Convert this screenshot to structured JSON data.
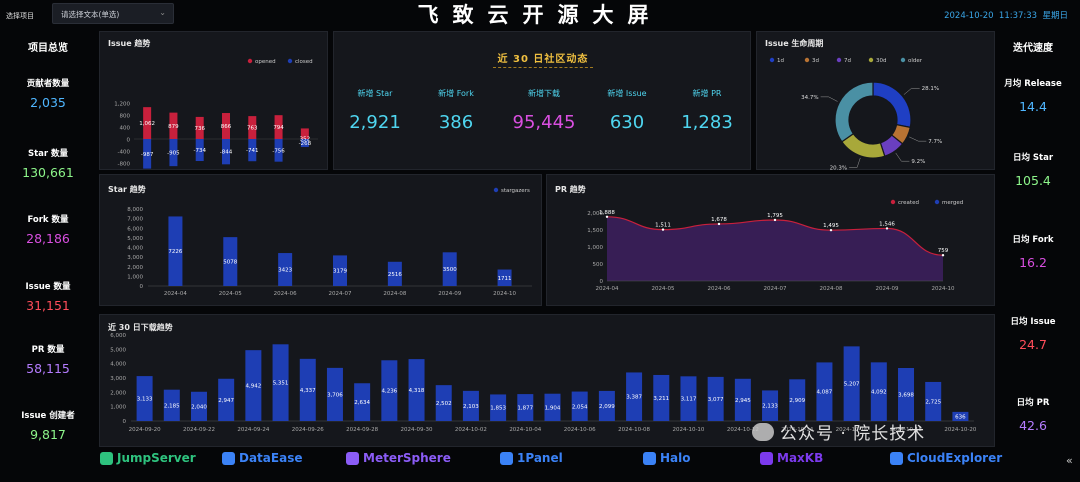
{
  "header": {
    "title": "飞致云开源大屏",
    "select_label": "选择项目",
    "select_placeholder": "请选择文本(单选)",
    "datetime": "2024-10-20  11:37:33  星期日"
  },
  "overview": {
    "title": "项目总览",
    "items": [
      {
        "label": "贡献者数量",
        "value": "2,035",
        "color": "#4fb6ff"
      },
      {
        "label": "Star 数量",
        "value": "130,661",
        "color": "#8df58a"
      },
      {
        "label": "Fork 数量",
        "value": "28,186",
        "color": "#d94fe0"
      },
      {
        "label": "Issue 数量",
        "value": "31,151",
        "color": "#ff4d5a"
      },
      {
        "label": "PR 数量",
        "value": "58,115",
        "color": "#b57cff"
      },
      {
        "label": "Issue 创建者",
        "value": "9,817",
        "color": "#8df58a"
      }
    ]
  },
  "velocity": {
    "title": "迭代速度",
    "items": [
      {
        "label": "月均 Release",
        "value": "14.4",
        "color": "#4fb6ff"
      },
      {
        "label": "日均 Star",
        "value": "105.4",
        "color": "#8df58a"
      },
      {
        "label": "日均 Fork",
        "value": "16.2",
        "color": "#d94fe0"
      },
      {
        "label": "日均 Issue",
        "value": "24.7",
        "color": "#ff4d5a"
      },
      {
        "label": "日均 PR",
        "value": "42.6",
        "color": "#b57cff"
      }
    ]
  },
  "community": {
    "title": "近 30 日社区动态",
    "items": [
      {
        "label": "新增 Star",
        "value": "2,921",
        "color": "#4fd6f0"
      },
      {
        "label": "新增 Fork",
        "value": "386",
        "color": "#4fd6f0"
      },
      {
        "label": "新增下载",
        "value": "95,445",
        "color": "#d94fe0"
      },
      {
        "label": "新增 Issue",
        "value": "630",
        "color": "#4fd6f0"
      },
      {
        "label": "新增 PR",
        "value": "1,283",
        "color": "#4fd6f0"
      }
    ]
  },
  "panels": {
    "issue_trend": "Issue 趋势",
    "issue_cycle": "Issue 生命周期",
    "star_trend": "Star 趋势",
    "pr_trend": "PR 趋势",
    "downloads": "近 30 日下载趋势"
  },
  "logos": [
    {
      "name": "JumpServer",
      "color": "#2ec27e"
    },
    {
      "name": "DataEase",
      "color": "#3b82f6"
    },
    {
      "name": "MeterSphere",
      "color": "#8b5cf6"
    },
    {
      "name": "1Panel",
      "color": "#3b82f6"
    },
    {
      "name": "Halo",
      "color": "#3b82f6"
    },
    {
      "name": "MaxKB",
      "color": "#7c3aed"
    },
    {
      "name": "CloudExplorer",
      "color": "#3b82f6"
    }
  ],
  "watermark": "公众号 · 院长技术",
  "chart_data": [
    {
      "id": "issue_trend",
      "type": "bar",
      "categories": [
        "2024-04",
        "2024-05",
        "2024-06",
        "2024-07",
        "2024-08",
        "2024-09",
        "2024-10"
      ],
      "x_tick_labels": [
        "2024-04",
        "2024-06",
        "2024-08",
        "2024-10"
      ],
      "series": [
        {
          "name": "opened",
          "values": [
            1062,
            879,
            736,
            866,
            763,
            794,
            352
          ],
          "color": "#c8203c"
        },
        {
          "name": "closed",
          "values": [
            -987,
            -905,
            -734,
            -844,
            -741,
            -756,
            -268
          ],
          "color": "#1e3eb4"
        }
      ],
      "yticks": [
        1200,
        800,
        400,
        0,
        -400,
        -800,
        -1200
      ],
      "ylim": [
        -1200,
        1200
      ],
      "legend": "top-right"
    },
    {
      "id": "issue_cycle",
      "type": "pie",
      "legend": [
        "1d",
        "3d",
        "7d",
        "30d",
        "older"
      ],
      "values": [
        28.1,
        7.7,
        9.2,
        20.3,
        34.7
      ],
      "labels": [
        "28.1%",
        "7.7%",
        "9.2%",
        "20.3%",
        "34.7%"
      ],
      "colors": [
        "#1f3fc4",
        "#b87333",
        "#6a3fc0",
        "#a8a83a",
        "#4a90a4"
      ],
      "legend_colors": [
        "#1f3fc4",
        "#b87333",
        "#6a3fc0",
        "#a8a83a",
        "#4a90a4"
      ]
    },
    {
      "id": "star_trend",
      "type": "bar",
      "categories": [
        "2024-04",
        "2024-05",
        "2024-06",
        "2024-07",
        "2024-08",
        "2024-09",
        "2024-10"
      ],
      "series": [
        {
          "name": "stargazers",
          "values": [
            7226,
            5078,
            3423,
            3179,
            2516,
            3500,
            1711
          ],
          "color": "#1e3eb4"
        }
      ],
      "yticks": [
        8000,
        7000,
        6000,
        5000,
        4000,
        3000,
        2000,
        1000,
        0
      ],
      "ylim": [
        0,
        8000
      ],
      "legend": "top-right"
    },
    {
      "id": "pr_trend",
      "type": "area",
      "categories": [
        "2024-04",
        "2024-05",
        "2024-06",
        "2024-07",
        "2024-08",
        "2024-09",
        "2024-10"
      ],
      "series": [
        {
          "name": "created",
          "values": [
            1888,
            1511,
            1678,
            1795,
            1495,
            1546,
            759
          ],
          "color": "#c8203c"
        },
        {
          "name": "merged",
          "values": [
            1888,
            1511,
            1678,
            1795,
            1495,
            1546,
            759
          ],
          "color": "#1e3eb4"
        }
      ],
      "yticks": [
        2000,
        1500,
        1000,
        500,
        0
      ],
      "ylim": [
        0,
        2000
      ],
      "legend": "top-right"
    },
    {
      "id": "downloads",
      "type": "bar",
      "categories": [
        "2024-09-20",
        "2024-09-21",
        "2024-09-22",
        "2024-09-23",
        "2024-09-24",
        "2024-09-25",
        "2024-09-26",
        "2024-09-27",
        "2024-09-28",
        "2024-09-29",
        "2024-09-30",
        "2024-10-01",
        "2024-10-02",
        "2024-10-03",
        "2024-10-04",
        "2024-10-05",
        "2024-10-06",
        "2024-10-07",
        "2024-10-08",
        "2024-10-09",
        "2024-10-10",
        "2024-10-11",
        "2024-10-12",
        "2024-10-13",
        "2024-10-14",
        "2024-10-15",
        "2024-10-16",
        "2024-10-17",
        "2024-10-18",
        "2024-10-19",
        "2024-10-20"
      ],
      "x_tick_labels": [
        "2024-09-20",
        "2024-09-22",
        "2024-09-24",
        "2024-09-26",
        "2024-09-28",
        "2024-09-30",
        "2024-10-02",
        "2024-10-04",
        "2024-10-06",
        "2024-10-08",
        "2024-10-10",
        "2024-10-12",
        "2024-10-14",
        "2024-10-16",
        "2024-10-18",
        "2024-10-20"
      ],
      "series": [
        {
          "name": "downloads",
          "values": [
            3133,
            2185,
            2040,
            2947,
            4942,
            5351,
            4337,
            3706,
            2634,
            4236,
            4318,
            2502,
            2103,
            1853,
            1877,
            1904,
            2054,
            2099,
            3387,
            3211,
            3117,
            3077,
            2945,
            2133,
            2909,
            4087,
            5207,
            4092,
            3698,
            2725,
            636
          ],
          "color": "#1e3eb4"
        }
      ],
      "yticks": [
        6000,
        5000,
        4000,
        3000,
        2000,
        1000,
        0
      ],
      "ylim": [
        0,
        6000
      ]
    }
  ]
}
